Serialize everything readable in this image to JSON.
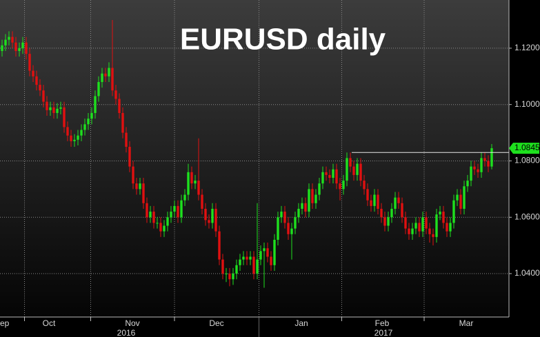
{
  "chart_data": {
    "type": "candlestick",
    "title": "EURUSD daily",
    "up_color": "#1ee01e",
    "down_color": "#e01010",
    "grid": true,
    "open": [
      1.119,
      1.121,
      1.123,
      1.124,
      1.122,
      1.119,
      1.12,
      1.122,
      1.118,
      1.112,
      1.11,
      1.107,
      1.105,
      1.101,
      1.098,
      1.099,
      1.097,
      1.0985,
      1.099,
      1.092,
      1.089,
      1.087,
      1.0875,
      1.089,
      1.091,
      1.093,
      1.095,
      1.097,
      1.103,
      1.108,
      1.111,
      1.11,
      1.113,
      1.105,
      1.102,
      1.097,
      1.09,
      1.085,
      1.078,
      1.072,
      1.07,
      1.072,
      1.065,
      1.06,
      1.062,
      1.058,
      1.058,
      1.055,
      1.057,
      1.06,
      1.062,
      1.064,
      1.06,
      1.066,
      1.068,
      1.076,
      1.072,
      1.073,
      1.068,
      1.063,
      1.059,
      1.058,
      1.063,
      1.055,
      1.045,
      1.04,
      1.04,
      1.038,
      1.04,
      1.043,
      1.045,
      1.046,
      1.045,
      1.046,
      1.04,
      1.045,
      1.048,
      1.049,
      1.046,
      1.043,
      1.052,
      1.06,
      1.062,
      1.058,
      1.054,
      1.056,
      1.06,
      1.063,
      1.065,
      1.062,
      1.07,
      1.065,
      1.068,
      1.072,
      1.076,
      1.075,
      1.074,
      1.077,
      1.072,
      1.07,
      1.073,
      1.081,
      1.078,
      1.075,
      1.079,
      1.073,
      1.07,
      1.066,
      1.064,
      1.068,
      1.063,
      1.06,
      1.057,
      1.06,
      1.063,
      1.067,
      1.065,
      1.06,
      1.056,
      1.054,
      1.056,
      1.058,
      1.055,
      1.06,
      1.056,
      1.054,
      1.053,
      1.061,
      1.062,
      1.058,
      1.055,
      1.058,
      1.066,
      1.068,
      1.063,
      1.071,
      1.073,
      1.078,
      1.077,
      1.076,
      1.081,
      1.08,
      1.078
    ],
    "high": [
      1.123,
      1.125,
      1.126,
      1.126,
      1.124,
      1.122,
      1.124,
      1.124,
      1.12,
      1.114,
      1.112,
      1.109,
      1.107,
      1.103,
      1.101,
      1.101,
      1.1005,
      1.101,
      1.101,
      1.094,
      1.091,
      1.0895,
      1.091,
      1.093,
      1.095,
      1.097,
      1.099,
      1.105,
      1.11,
      1.113,
      1.113,
      1.115,
      1.13,
      1.107,
      1.104,
      1.099,
      1.092,
      1.087,
      1.08,
      1.074,
      1.074,
      1.074,
      1.067,
      1.064,
      1.064,
      1.06,
      1.06,
      1.059,
      1.062,
      1.064,
      1.066,
      1.066,
      1.068,
      1.07,
      1.079,
      1.078,
      1.075,
      1.088,
      1.07,
      1.065,
      1.061,
      1.065,
      1.065,
      1.057,
      1.047,
      1.042,
      1.042,
      1.042,
      1.045,
      1.047,
      1.048,
      1.048,
      1.048,
      1.048,
      1.065,
      1.05,
      1.051,
      1.051,
      1.048,
      1.054,
      1.062,
      1.064,
      1.064,
      1.06,
      1.058,
      1.062,
      1.065,
      1.067,
      1.067,
      1.072,
      1.072,
      1.07,
      1.074,
      1.078,
      1.078,
      1.077,
      1.079,
      1.079,
      1.074,
      1.075,
      1.083,
      1.083,
      1.08,
      1.081,
      1.081,
      1.075,
      1.072,
      1.068,
      1.07,
      1.07,
      1.065,
      1.062,
      1.062,
      1.065,
      1.069,
      1.069,
      1.067,
      1.062,
      1.058,
      1.058,
      1.06,
      1.06,
      1.062,
      1.062,
      1.058,
      1.056,
      1.063,
      1.064,
      1.064,
      1.06,
      1.06,
      1.068,
      1.07,
      1.07,
      1.073,
      1.075,
      1.08,
      1.08,
      1.079,
      1.083,
      1.083,
      1.082,
      1.086
    ],
    "low": [
      1.117,
      1.119,
      1.121,
      1.12,
      1.117,
      1.117,
      1.118,
      1.116,
      1.11,
      1.108,
      1.105,
      1.103,
      1.099,
      1.096,
      1.096,
      1.095,
      1.095,
      1.0965,
      1.09,
      1.087,
      1.085,
      1.085,
      1.0855,
      1.087,
      1.089,
      1.091,
      1.093,
      1.095,
      1.101,
      1.106,
      1.108,
      1.108,
      1.103,
      1.1,
      1.095,
      1.088,
      1.083,
      1.076,
      1.07,
      1.068,
      1.068,
      1.063,
      1.058,
      1.058,
      1.056,
      1.056,
      1.053,
      1.053,
      1.055,
      1.058,
      1.06,
      1.058,
      1.058,
      1.064,
      1.066,
      1.07,
      1.07,
      1.066,
      1.061,
      1.057,
      1.056,
      1.056,
      1.053,
      1.043,
      1.038,
      1.037,
      1.0355,
      1.036,
      1.038,
      1.041,
      1.043,
      1.043,
      1.043,
      1.038,
      1.038,
      1.043,
      1.035,
      1.044,
      1.041,
      1.041,
      1.05,
      1.058,
      1.056,
      1.052,
      1.045,
      1.054,
      1.058,
      1.061,
      1.06,
      1.06,
      1.063,
      1.063,
      1.066,
      1.07,
      1.073,
      1.072,
      1.072,
      1.07,
      1.066,
      1.068,
      1.071,
      1.076,
      1.073,
      1.073,
      1.071,
      1.068,
      1.064,
      1.062,
      1.062,
      1.061,
      1.058,
      1.055,
      1.055,
      1.058,
      1.061,
      1.063,
      1.058,
      1.054,
      1.052,
      1.052,
      1.054,
      1.053,
      1.053,
      1.054,
      1.051,
      1.05,
      1.051,
      1.059,
      1.056,
      1.053,
      1.053,
      1.056,
      1.064,
      1.061,
      1.061,
      1.069,
      1.071,
      1.075,
      1.074,
      1.074,
      1.078,
      1.076,
      1.077
    ],
    "close": [
      1.121,
      1.123,
      1.124,
      1.122,
      1.119,
      1.12,
      1.122,
      1.118,
      1.112,
      1.11,
      1.107,
      1.105,
      1.101,
      1.098,
      1.099,
      1.097,
      1.0985,
      1.099,
      1.092,
      1.089,
      1.087,
      1.0875,
      1.089,
      1.091,
      1.093,
      1.095,
      1.097,
      1.103,
      1.108,
      1.111,
      1.11,
      1.113,
      1.105,
      1.102,
      1.097,
      1.09,
      1.085,
      1.078,
      1.072,
      1.07,
      1.072,
      1.065,
      1.06,
      1.062,
      1.058,
      1.058,
      1.055,
      1.057,
      1.06,
      1.062,
      1.064,
      1.06,
      1.066,
      1.068,
      1.076,
      1.072,
      1.073,
      1.068,
      1.063,
      1.059,
      1.058,
      1.063,
      1.055,
      1.045,
      1.04,
      1.04,
      1.038,
      1.04,
      1.043,
      1.045,
      1.046,
      1.045,
      1.046,
      1.04,
      1.045,
      1.048,
      1.049,
      1.046,
      1.043,
      1.052,
      1.06,
      1.062,
      1.058,
      1.054,
      1.056,
      1.06,
      1.063,
      1.065,
      1.062,
      1.07,
      1.065,
      1.068,
      1.072,
      1.076,
      1.075,
      1.074,
      1.077,
      1.072,
      1.07,
      1.073,
      1.081,
      1.078,
      1.075,
      1.079,
      1.073,
      1.07,
      1.066,
      1.064,
      1.068,
      1.063,
      1.06,
      1.057,
      1.06,
      1.063,
      1.067,
      1.065,
      1.06,
      1.056,
      1.054,
      1.056,
      1.058,
      1.055,
      1.06,
      1.056,
      1.054,
      1.053,
      1.061,
      1.062,
      1.058,
      1.055,
      1.058,
      1.066,
      1.068,
      1.063,
      1.071,
      1.073,
      1.078,
      1.077,
      1.076,
      1.081,
      1.08,
      1.078,
      1.0845
    ],
    "xlim": [
      -0.6,
      147
    ],
    "ylim": [
      1.0246,
      1.1371
    ],
    "yticks": [
      {
        "value": 1.04,
        "label": "1.0400"
      },
      {
        "value": 1.06,
        "label": "1.0600"
      },
      {
        "value": 1.08,
        "label": "1.0800"
      },
      {
        "value": 1.1,
        "label": "1.1000"
      },
      {
        "value": 1.12,
        "label": "1.1200"
      }
    ],
    "xticks": [
      {
        "value": -0.6,
        "label": "ep"
      },
      {
        "value": 13.6,
        "label": "Oct"
      },
      {
        "value": 37.8,
        "label": "Nov"
      },
      {
        "value": 62.2,
        "label": "Dec"
      },
      {
        "value": 86.8,
        "label": "Jan"
      },
      {
        "value": 110.2,
        "label": "Feb"
      },
      {
        "value": 134.6,
        "label": "Mar"
      }
    ],
    "year_labels": [
      {
        "value": 36,
        "label": "2016"
      },
      {
        "value": 110.6,
        "label": "2017"
      }
    ],
    "ref_line": {
      "value": 1.083,
      "from": 101.4
    },
    "last_label": {
      "value": 1.0845,
      "label": "1.0845"
    }
  }
}
